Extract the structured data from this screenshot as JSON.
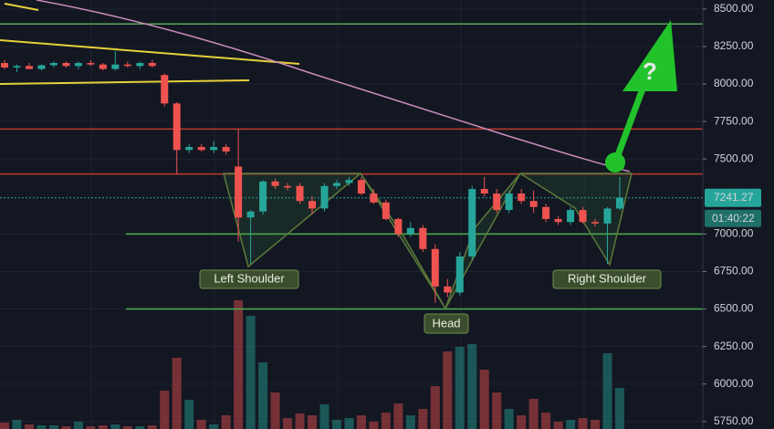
{
  "chart_data": {
    "type": "candlestick",
    "ylim": [
      5700,
      8560
    ],
    "yticks": [
      {
        "value": 8500,
        "label": "8500.00"
      },
      {
        "value": 8250,
        "label": "8250.00"
      },
      {
        "value": 8000,
        "label": "8000.00"
      },
      {
        "value": 7750,
        "label": "7750.00"
      },
      {
        "value": 7500,
        "label": "7500.00"
      },
      {
        "value": 7000,
        "label": "7000.00"
      },
      {
        "value": 6750,
        "label": "6750.00"
      },
      {
        "value": 6500,
        "label": "6500.00"
      },
      {
        "value": 6250,
        "label": "6250.00"
      },
      {
        "value": 6000,
        "label": "6000.00"
      },
      {
        "value": 5750,
        "label": "5750.00"
      }
    ],
    "up_color": "#26a69a",
    "down_color": "#ef5350",
    "open": [
      8140,
      8110,
      8120,
      8100,
      8125,
      8140,
      8120,
      8140,
      8130,
      8100,
      8130,
      8120,
      8140,
      8060,
      7870,
      7560,
      7580,
      7560,
      7580,
      7450,
      7110,
      7150,
      7350,
      7320,
      7320,
      7220,
      7170,
      7320,
      7340,
      7360,
      7270,
      7210,
      7100,
      7000,
      7040,
      6900,
      6650,
      6610,
      6850,
      7300,
      7270,
      7160,
      7270,
      7220,
      7180,
      7100,
      7080,
      7160,
      7080,
      7070,
      7170
    ],
    "high": [
      8160,
      8130,
      8140,
      8130,
      8150,
      8150,
      8150,
      8160,
      8140,
      8220,
      8150,
      8150,
      8160,
      8070,
      7880,
      7600,
      7600,
      7620,
      7600,
      7700,
      7160,
      7360,
      7370,
      7340,
      7340,
      7250,
      7340,
      7360,
      7380,
      7380,
      7300,
      7230,
      7110,
      7080,
      7060,
      6930,
      6700,
      6880,
      7320,
      7380,
      7300,
      7290,
      7300,
      7290,
      7200,
      7120,
      7180,
      7180,
      7100,
      7180,
      7380
    ],
    "low": [
      8100,
      8080,
      8100,
      8090,
      8110,
      8110,
      8100,
      8120,
      8090,
      8090,
      8110,
      8100,
      8110,
      7850,
      7400,
      7540,
      7550,
      7540,
      7530,
      6950,
      6800,
      7130,
      7300,
      7290,
      7200,
      7130,
      7150,
      7300,
      7320,
      7260,
      7200,
      7090,
      6980,
      6980,
      6880,
      6540,
      6580,
      6590,
      6830,
      7250,
      7140,
      7140,
      7200,
      7140,
      7080,
      7060,
      7060,
      7070,
      7050,
      6800,
      7160
    ],
    "close": [
      8110,
      8120,
      8100,
      8125,
      8140,
      8120,
      8140,
      8130,
      8100,
      8130,
      8120,
      8140,
      8120,
      7870,
      7560,
      7580,
      7560,
      7580,
      7550,
      7110,
      7150,
      7350,
      7320,
      7310,
      7220,
      7170,
      7320,
      7340,
      7360,
      7270,
      7210,
      7100,
      7000,
      7040,
      6900,
      6650,
      6610,
      6850,
      7300,
      7270,
      7160,
      7270,
      7220,
      7180,
      7100,
      7080,
      7160,
      7080,
      7070,
      7170,
      7241.27
    ],
    "volume": [
      7,
      10,
      5,
      4,
      4,
      3,
      8,
      3,
      4,
      5,
      3,
      3,
      4,
      42,
      78,
      32,
      10,
      5,
      15,
      141,
      124,
      73,
      40,
      12,
      17,
      15,
      27,
      10,
      12,
      15,
      8,
      18,
      28,
      15,
      22,
      47,
      85,
      90,
      93,
      65,
      40,
      22,
      15,
      33,
      18,
      8,
      10,
      12,
      10,
      83,
      45
    ],
    "levels": [
      {
        "value": 8400,
        "color": "#5aa65a"
      },
      {
        "value": 7700,
        "color": "#c0392b"
      },
      {
        "value": 7400,
        "color": "#c0392b"
      },
      {
        "value": 7000,
        "color": "#4caf50"
      },
      {
        "value": 6500,
        "color": "#4caf50"
      }
    ],
    "last_price": 7241.27,
    "last_price_label": "7241.27",
    "countdown": "01:40:22",
    "annotations": [
      "Left Shoulder",
      "Head",
      "Right Shoulder",
      "?"
    ]
  }
}
